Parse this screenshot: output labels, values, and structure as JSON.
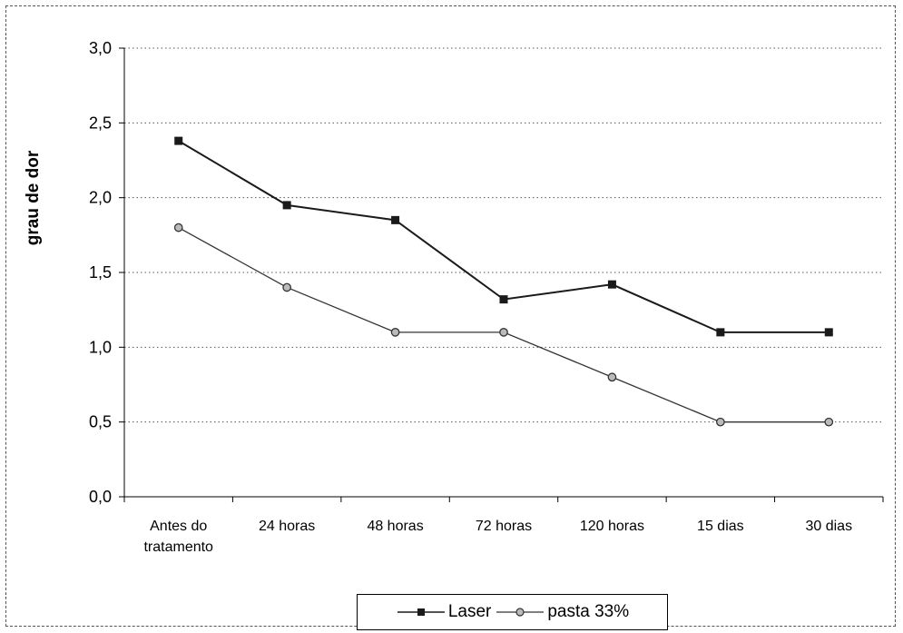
{
  "chart_data": {
    "type": "line",
    "categories": [
      [
        "Antes do",
        "tratamento"
      ],
      [
        "24 horas"
      ],
      [
        "48 horas"
      ],
      [
        "72 horas"
      ],
      [
        "120 horas"
      ],
      [
        "15 dias"
      ],
      [
        "30 dias"
      ]
    ],
    "series": [
      {
        "name": "Laser",
        "values": [
          2.38,
          1.95,
          1.85,
          1.32,
          1.42,
          1.1,
          1.1
        ],
        "marker": "square",
        "color": "#1a1a1a"
      },
      {
        "name": "pasta 33%",
        "values": [
          1.8,
          1.4,
          1.1,
          1.1,
          0.8,
          0.5,
          0.5
        ],
        "marker": "circle",
        "color": "#333333"
      }
    ],
    "title": "",
    "xlabel": "",
    "ylabel": "grau de dor",
    "ylim": [
      0,
      3
    ],
    "yticks": [
      "0,0",
      "0,5",
      "1,0",
      "1,5",
      "2,0",
      "2,5",
      "3,0"
    ],
    "grid": "horizontal dotted",
    "legend_position": "bottom"
  }
}
